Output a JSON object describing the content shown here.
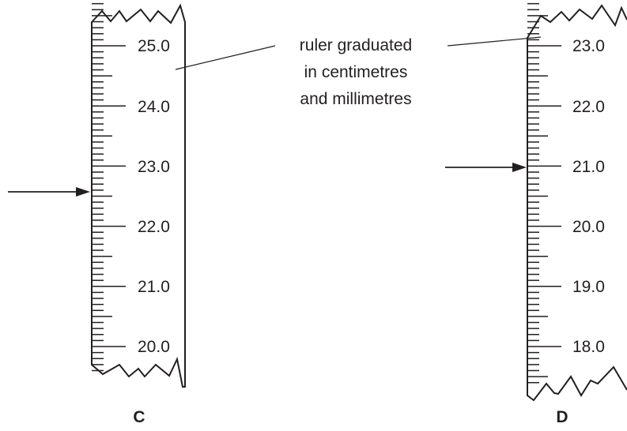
{
  "annotation": {
    "lines": [
      "ruler graduated",
      "in centimetres",
      "and millimetres"
    ]
  },
  "rulers": [
    {
      "letter": "C",
      "labels": [
        "25.0",
        "24.0",
        "23.0",
        "22.0",
        "21.0",
        "20.0"
      ],
      "top_value_cm": 25.8,
      "bottom_value_cm": 19.6,
      "arrow_value_cm": 22.5
    },
    {
      "letter": "D",
      "labels": [
        "23.0",
        "22.0",
        "21.0",
        "20.0",
        "19.0",
        "18.0"
      ],
      "top_value_cm": 23.8,
      "bottom_value_cm": 17.4,
      "arrow_value_cm": 21.0
    }
  ]
}
